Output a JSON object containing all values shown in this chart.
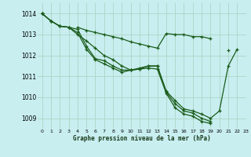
{
  "title": "Graphe pression niveau de la mer (hPa)",
  "bg_color": "#c8eef0",
  "grid_color": "#b0d8c8",
  "line_color": "#1a5c1a",
  "xlim": [
    -0.5,
    23
  ],
  "ylim": [
    1008.5,
    1014.5
  ],
  "yticks": [
    1009,
    1010,
    1011,
    1012,
    1013,
    1014
  ],
  "xticks": [
    0,
    1,
    2,
    3,
    4,
    5,
    6,
    7,
    8,
    9,
    10,
    11,
    12,
    13,
    14,
    15,
    16,
    17,
    18,
    19,
    20,
    21,
    22,
    23
  ],
  "series": [
    [
      1014.0,
      1013.65,
      1013.4,
      1013.35,
      1013.25,
      1012.45,
      1011.85,
      1011.75,
      1011.5,
      1011.3,
      1011.3,
      1011.35,
      1011.5,
      1011.5,
      1010.3,
      1009.85,
      1009.45,
      1009.35,
      1009.2,
      1009.0,
      1009.35,
      1011.5,
      1012.3,
      null
    ],
    [
      1014.0,
      1013.65,
      1013.4,
      1013.35,
      1013.1,
      1012.3,
      1011.8,
      1011.6,
      1011.4,
      1011.2,
      1011.3,
      1011.4,
      1011.5,
      1011.5,
      1010.25,
      1009.7,
      1009.35,
      1009.25,
      1009.0,
      1008.85,
      null,
      null,
      null,
      null
    ],
    [
      1014.0,
      1013.65,
      1013.4,
      1013.35,
      1013.0,
      1012.7,
      1012.35,
      1012.0,
      1011.8,
      1011.5,
      1011.3,
      1011.35,
      1011.4,
      1011.35,
      1010.2,
      1009.5,
      1009.2,
      1009.1,
      1008.85,
      1008.75,
      null,
      null,
      null,
      null
    ],
    [
      1014.0,
      null,
      null,
      null,
      1013.35,
      1013.2,
      1013.1,
      1013.0,
      1012.9,
      1012.8,
      1012.65,
      1012.55,
      1012.45,
      1012.35,
      1013.05,
      1013.0,
      1013.0,
      1012.9,
      1012.9,
      1012.8,
      null,
      1012.25,
      null,
      null
    ]
  ]
}
